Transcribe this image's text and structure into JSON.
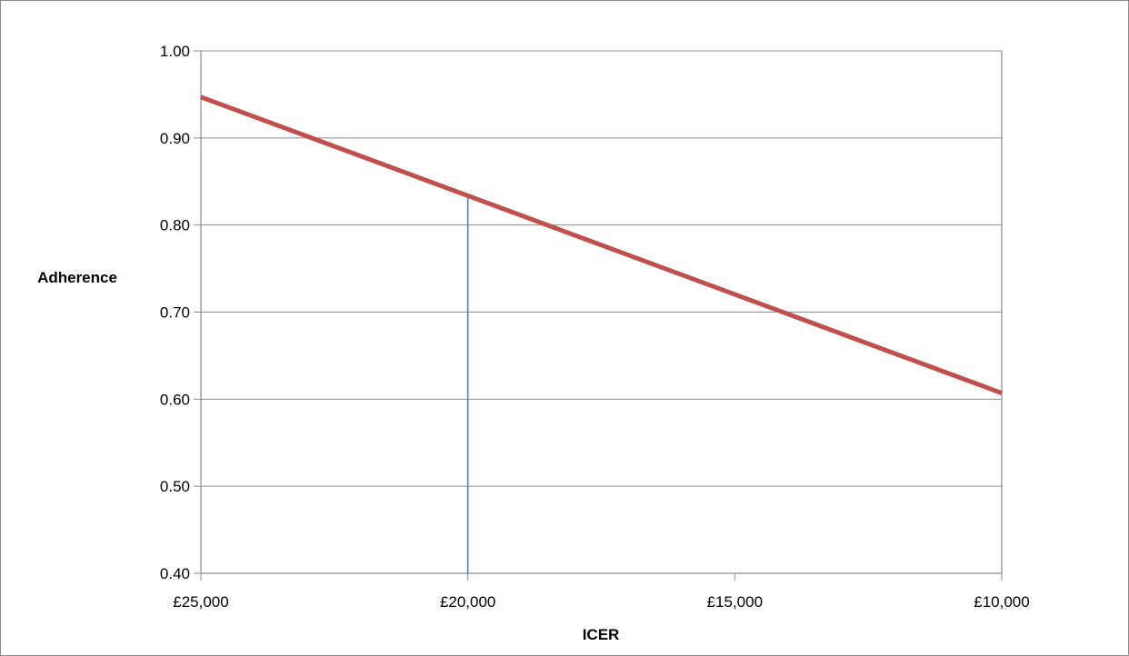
{
  "chart_data": {
    "type": "line",
    "title": "",
    "xlabel": "ICER",
    "ylabel": "Adherence",
    "x_axis": {
      "reversed": true,
      "range": [
        25000,
        10000
      ],
      "ticks": [
        25000,
        20000,
        15000,
        10000
      ],
      "tick_labels": [
        "£25,000",
        "£20,000",
        "£15,000",
        "£10,000"
      ]
    },
    "y_axis": {
      "range": [
        0.4,
        1.0
      ],
      "ticks": [
        0.4,
        0.5,
        0.6,
        0.7,
        0.8,
        0.9,
        1.0
      ],
      "tick_labels": [
        "0.40",
        "0.50",
        "0.60",
        "0.70",
        "0.80",
        "0.90",
        "1.00"
      ]
    },
    "grid": "horizontal",
    "legend": "none",
    "series": [
      {
        "x": [
          25000,
          10000
        ],
        "y": [
          0.947,
          0.607
        ],
        "color": "#c0504d"
      }
    ],
    "reference_lines": [
      {
        "orientation": "vertical",
        "x": 20000,
        "y_from": 0.4,
        "y_to": 0.835,
        "color": "#4f81bd"
      }
    ]
  }
}
